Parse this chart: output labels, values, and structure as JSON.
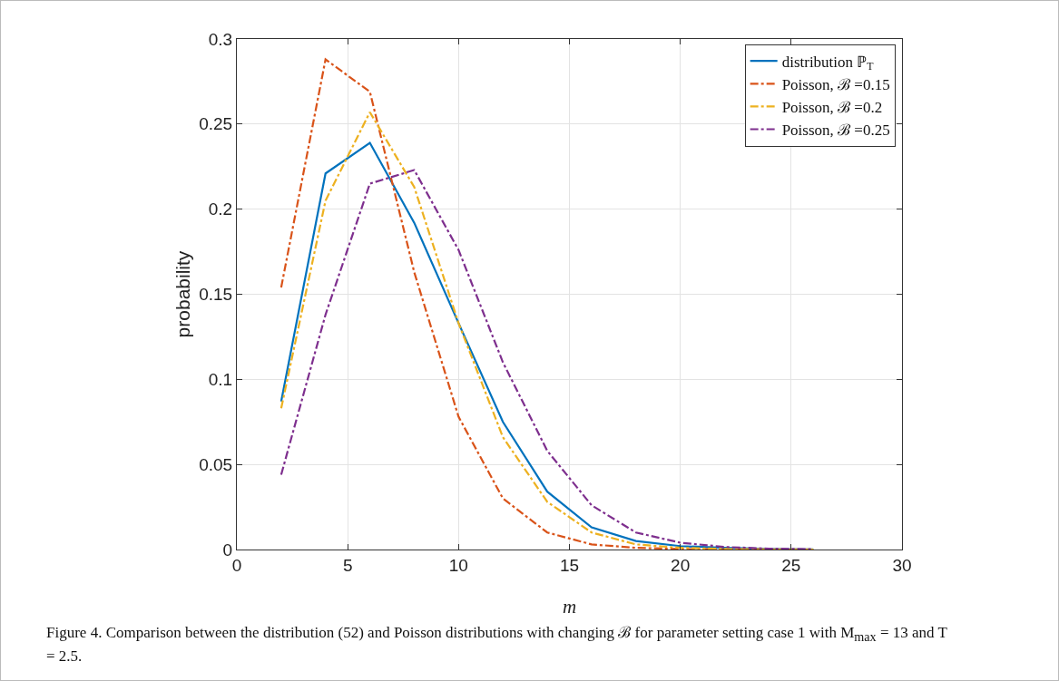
{
  "chart_data": {
    "type": "line",
    "xlabel": "m",
    "ylabel": "probability",
    "x": [
      2,
      4,
      6,
      8,
      10,
      12,
      14,
      16,
      18,
      20,
      22,
      24,
      26
    ],
    "series": [
      {
        "name": "distribution ℙ$_{T}$",
        "color": "#0072bd",
        "line_style": "solid",
        "values": [
          0.087,
          0.221,
          0.239,
          0.192,
          0.133,
          0.075,
          0.034,
          0.013,
          0.005,
          0.002,
          0.001,
          0.0003,
          0.0001
        ]
      },
      {
        "name": "Poisson, ℬ =0.15",
        "color": "#d95319",
        "line_style": "dashdot",
        "values": [
          0.154,
          0.288,
          0.269,
          0.163,
          0.078,
          0.03,
          0.01,
          0.003,
          0.001,
          0.0003,
          0.0001,
          0,
          0
        ]
      },
      {
        "name": "Poisson, ℬ =0.2",
        "color": "#edb120",
        "line_style": "dashdot",
        "values": [
          0.083,
          0.205,
          0.257,
          0.213,
          0.133,
          0.066,
          0.028,
          0.01,
          0.003,
          0.001,
          0.0003,
          0.0001,
          0
        ]
      },
      {
        "name": "Poisson, ℬ =0.25",
        "color": "#7e2f8e",
        "line_style": "dashdot",
        "values": [
          0.044,
          0.138,
          0.215,
          0.223,
          0.176,
          0.11,
          0.058,
          0.026,
          0.01,
          0.004,
          0.0015,
          0.0005,
          0.0002
        ]
      }
    ],
    "xlim": [
      0,
      30
    ],
    "xticks": [
      0,
      5,
      10,
      15,
      20,
      25,
      30
    ],
    "ylim": [
      0,
      0.3
    ],
    "yticks": [
      0,
      0.05,
      0.1,
      0.15,
      0.2,
      0.25,
      0.3
    ],
    "grid": true,
    "legend": "top right",
    "marker": "none",
    "annotations": [
      "Figure 4. Comparison between the distribution (52) and Poisson distributions with changing ℬ for parameter setting case 1 with M$_{max}$ = 13 and T = 2.5."
    ]
  }
}
